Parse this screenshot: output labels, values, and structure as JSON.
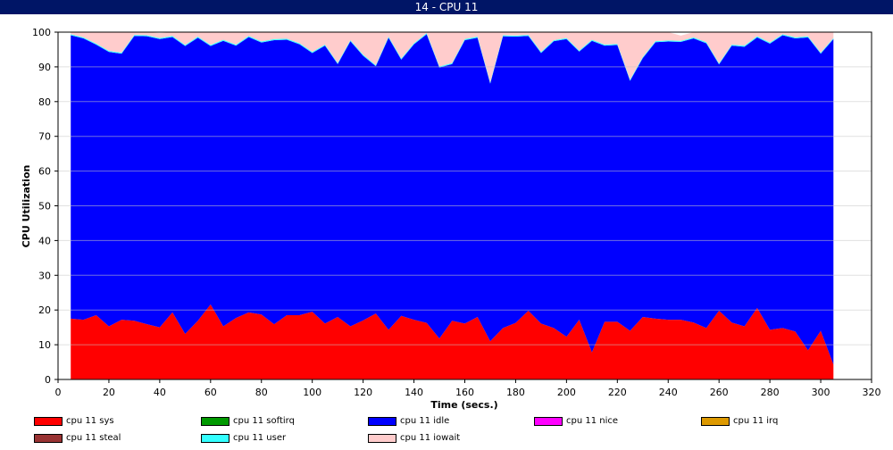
{
  "window": {
    "title": "14 - CPU 11"
  },
  "chart_data": {
    "type": "area",
    "stacked": true,
    "xlabel": "Time (secs.)",
    "ylabel": "CPU Utilization",
    "xlim": [
      0,
      320
    ],
    "ylim": [
      0,
      100
    ],
    "xticks": [
      0,
      20,
      40,
      60,
      80,
      100,
      120,
      140,
      160,
      180,
      200,
      220,
      240,
      260,
      280,
      300,
      320
    ],
    "yticks": [
      0,
      10,
      20,
      30,
      40,
      50,
      60,
      70,
      80,
      90,
      100
    ],
    "grid": true,
    "legend_position": "bottom",
    "x": [
      5,
      10,
      15,
      20,
      25,
      30,
      35,
      40,
      45,
      50,
      55,
      60,
      65,
      70,
      75,
      80,
      85,
      90,
      95,
      100,
      105,
      110,
      115,
      120,
      125,
      130,
      135,
      140,
      145,
      150,
      155,
      160,
      165,
      170,
      175,
      180,
      185,
      190,
      195,
      200,
      205,
      210,
      215,
      220,
      225,
      230,
      235,
      240,
      245,
      250,
      255,
      260,
      265,
      270,
      275,
      280,
      285,
      290,
      295,
      300,
      305
    ],
    "series": [
      {
        "name": "cpu 11 sys",
        "color": "#ff0000",
        "values": [
          17.5,
          17.2,
          18.5,
          15.3,
          17.2,
          16.9,
          15.9,
          15.0,
          19.3,
          13.1,
          16.9,
          21.6,
          15.3,
          17.7,
          19.3,
          18.7,
          15.9,
          18.5,
          18.5,
          19.5,
          16.1,
          18.0,
          15.3,
          17.0,
          19.0,
          14.3,
          18.3,
          17.2,
          16.3,
          11.8,
          16.9,
          16.1,
          18.0,
          11.0,
          14.8,
          16.3,
          19.8,
          16.1,
          14.8,
          12.3,
          17.2,
          7.8,
          16.6,
          16.6,
          14.0,
          18.0,
          17.5,
          17.2,
          17.2,
          16.4,
          14.8,
          19.8,
          16.4,
          15.3,
          20.6,
          14.3,
          14.8,
          13.8,
          8.4,
          14.0,
          4.3
        ]
      },
      {
        "name": "cpu 11 softirq",
        "color": "#009900",
        "values": [
          0,
          0,
          0,
          0,
          0,
          0,
          0,
          0,
          0,
          0,
          0,
          0,
          0,
          0,
          0,
          0,
          0,
          0,
          0,
          0,
          0,
          0,
          0,
          0,
          0,
          0,
          0,
          0,
          0,
          0,
          0,
          0,
          0,
          0,
          0,
          0,
          0,
          0,
          0,
          0,
          0,
          0,
          0,
          0,
          0,
          0,
          0,
          0,
          0,
          0,
          0,
          0,
          0,
          0,
          0,
          0,
          0,
          0,
          0,
          0,
          0
        ]
      },
      {
        "name": "cpu 11 idle",
        "color": "#0000ff",
        "values": [
          81.6,
          81.0,
          77.9,
          79.0,
          76.6,
          82.0,
          82.9,
          83.0,
          79.3,
          82.9,
          81.5,
          74.4,
          82.2,
          78.4,
          79.3,
          78.3,
          81.8,
          79.3,
          78.0,
          74.5,
          80.0,
          72.8,
          82.1,
          76.2,
          71.2,
          84.1,
          73.8,
          79.3,
          83.1,
          78.0,
          73.9,
          81.6,
          80.4,
          74.2,
          84.0,
          82.4,
          79.1,
          77.9,
          82.6,
          85.7,
          77.2,
          89.7,
          79.5,
          79.7,
          72.0,
          74.5,
          79.6,
          80.1,
          80.0,
          81.8,
          82.0,
          70.9,
          79.7,
          80.5,
          77.9,
          82.4,
          84.3,
          84.4,
          90.1,
          79.8,
          93.7
        ]
      },
      {
        "name": "cpu 11 nice",
        "color": "#ff00ff",
        "values": [
          0,
          0,
          0,
          0,
          0,
          0,
          0,
          0,
          0,
          0,
          0,
          0,
          0,
          0,
          0,
          0,
          0,
          0,
          0,
          0,
          0,
          0,
          0,
          0,
          0,
          0,
          0,
          0,
          0,
          0,
          0,
          0,
          0,
          0,
          0,
          0,
          0,
          0,
          0,
          0,
          0,
          0,
          0,
          0,
          0,
          0,
          0,
          0,
          0,
          0,
          0,
          0,
          0,
          0,
          0,
          0,
          0,
          0,
          0,
          0,
          0
        ]
      },
      {
        "name": "cpu 11 irq",
        "color": "#dd9900",
        "values": [
          0,
          0,
          0,
          0,
          0,
          0,
          0,
          0,
          0,
          0,
          0,
          0,
          0,
          0,
          0,
          0,
          0,
          0,
          0,
          0,
          0,
          0,
          0,
          0,
          0,
          0,
          0,
          0,
          0,
          0,
          0,
          0,
          0,
          0,
          0,
          0,
          0,
          0,
          0,
          0,
          0,
          0,
          0,
          0,
          0,
          0,
          0,
          0,
          0,
          0,
          0,
          0,
          0,
          0,
          0,
          0,
          0,
          0,
          0,
          0,
          0
        ]
      },
      {
        "name": "cpu 11 steal",
        "color": "#993333",
        "values": [
          0,
          0,
          0,
          0,
          0,
          0,
          0,
          0,
          0,
          0,
          0,
          0,
          0,
          0,
          0,
          0,
          0,
          0,
          0,
          0,
          0,
          0,
          0,
          0,
          0,
          0,
          0,
          0,
          0,
          0,
          0,
          0,
          0,
          0,
          0,
          0,
          0,
          0,
          0,
          0,
          0,
          0,
          0,
          0,
          0,
          0,
          0,
          0,
          0,
          0,
          0,
          0,
          0,
          0,
          0,
          0,
          0,
          0,
          0,
          0,
          0
        ]
      },
      {
        "name": "cpu 11 user",
        "color": "#33ffff",
        "values": [
          0.3,
          0.3,
          0.3,
          0.3,
          0.3,
          0.3,
          0.3,
          0.3,
          0.3,
          0.3,
          0.3,
          0.3,
          0.3,
          0.3,
          0.3,
          0.3,
          0.3,
          0.3,
          0.3,
          0.3,
          0.3,
          0.3,
          0.3,
          0.3,
          0.3,
          0.3,
          0.3,
          0.3,
          0.3,
          0.3,
          0.3,
          0.3,
          0.3,
          0.3,
          0.3,
          0.3,
          0.3,
          0.3,
          0.3,
          0.3,
          0.3,
          0.3,
          0.3,
          0.3,
          0.3,
          0.3,
          0.3,
          0.3,
          0.3,
          0.3,
          0.3,
          0.3,
          0.3,
          0.3,
          0.3,
          0.3,
          0.3,
          0.3,
          0.3,
          0.3,
          0.3
        ]
      },
      {
        "name": "cpu 11 iowait",
        "color": "#ffcccc",
        "values": [
          0.6,
          1.5,
          3.3,
          5.4,
          5.9,
          0.8,
          0.9,
          1.4,
          1.1,
          3.7,
          1.3,
          3.7,
          2.2,
          3.6,
          1.1,
          2.7,
          2.0,
          1.9,
          3.2,
          5.7,
          3.6,
          8.9,
          2.3,
          6.5,
          9.5,
          1.3,
          7.6,
          3.2,
          0.3,
          9.9,
          8.9,
          2.0,
          1.3,
          14.5,
          0.9,
          1.0,
          0.8,
          5.7,
          2.3,
          1.7,
          5.3,
          2.2,
          3.6,
          3.4,
          13.7,
          7.2,
          2.6,
          2.4,
          1.5,
          1.5,
          2.9,
          9.0,
          3.6,
          3.9,
          1.2,
          3.0,
          0.6,
          1.5,
          1.2,
          5.9,
          1.7
        ]
      }
    ]
  }
}
